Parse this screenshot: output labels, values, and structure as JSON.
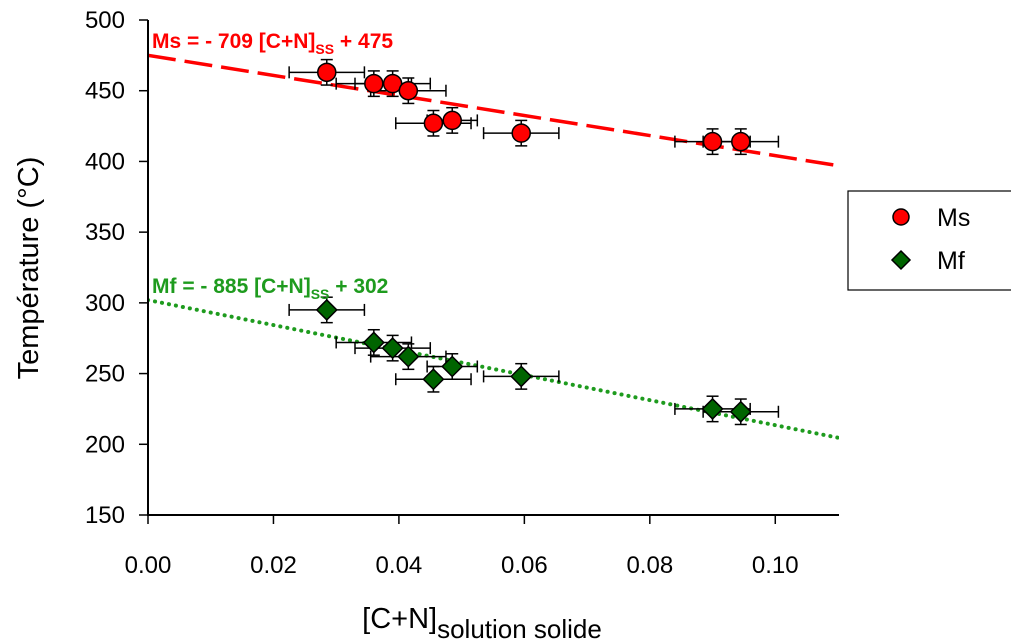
{
  "chart_data": {
    "type": "scatter",
    "xlabel": "[C+N]",
    "xlabel_subscript": "solution solide",
    "ylabel": "Température (°C)",
    "xlim": [
      0.0,
      0.11
    ],
    "ylim": [
      150,
      500
    ],
    "x_ticks": [
      "0.00",
      "0.02",
      "0.04",
      "0.06",
      "0.08",
      "0.10"
    ],
    "x_tick_values": [
      0.0,
      0.02,
      0.04,
      0.06,
      0.08,
      0.1
    ],
    "y_ticks": [
      "150",
      "200",
      "250",
      "300",
      "350",
      "400",
      "450",
      "500"
    ],
    "y_tick_values": [
      150,
      200,
      250,
      300,
      350,
      400,
      450,
      500
    ],
    "grid": false,
    "legend_position": "right",
    "series": [
      {
        "name": "Ms",
        "marker": "circle",
        "color": "#ff0000",
        "x": [
          0.0285,
          0.036,
          0.039,
          0.0415,
          0.0455,
          0.0485,
          0.0595,
          0.09,
          0.0945
        ],
        "y": [
          463,
          455,
          455,
          450,
          427,
          429,
          420,
          414,
          414
        ],
        "x_err": [
          0.006,
          0.006,
          0.006,
          0.006,
          0.006,
          0.004,
          0.006,
          0.006,
          0.006
        ],
        "y_err": [
          9,
          9,
          9,
          9,
          9,
          9,
          9,
          9,
          9
        ],
        "fit": {
          "equation_prefix": "Ms = - 709 [C+N]",
          "equation_sub": "SS",
          "equation_suffix": " + 475",
          "slope": -709,
          "intercept": 475,
          "style": "dashed",
          "color": "#ff0000"
        }
      },
      {
        "name": "Mf",
        "marker": "diamond",
        "color": "#006400",
        "x": [
          0.0285,
          0.036,
          0.039,
          0.0415,
          0.0455,
          0.0485,
          0.0595,
          0.09,
          0.0945
        ],
        "y": [
          295,
          272,
          268,
          262,
          246,
          255,
          248,
          225,
          223
        ],
        "x_err": [
          0.006,
          0.006,
          0.006,
          0.006,
          0.006,
          0.004,
          0.006,
          0.006,
          0.006
        ],
        "y_err": [
          9,
          9,
          9,
          9,
          9,
          9,
          9,
          9,
          9
        ],
        "fit": {
          "equation_prefix": "Mf = - 885 [C+N]",
          "equation_sub": "SS",
          "equation_suffix": " + 302",
          "slope": -885,
          "intercept": 302,
          "style": "dotted",
          "color": "#1e9b1e"
        }
      }
    ]
  }
}
